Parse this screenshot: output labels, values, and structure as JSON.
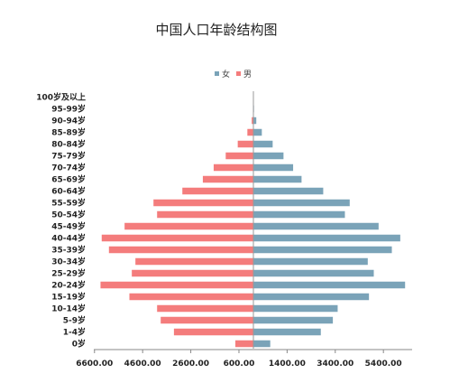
{
  "chart_data": {
    "type": "bar",
    "orientation": "horizontal-diverging",
    "title": "中国人口年龄结构图",
    "categories": [
      "0岁",
      "1-4岁",
      "5-9岁",
      "10-14岁",
      "15-19岁",
      "20-24岁",
      "25-29岁",
      "30-34岁",
      "35-39岁",
      "40-44岁",
      "45-49岁",
      "50-54岁",
      "55-59岁",
      "60-64岁",
      "65-69岁",
      "70-74岁",
      "75-79岁",
      "80-84岁",
      "85-89岁",
      "90-94岁",
      "95-99岁",
      "100岁及以上"
    ],
    "series": [
      {
        "name": "女",
        "color": "#7aa3b8",
        "values": [
          700,
          2800,
          3300,
          3500,
          4800,
          6300,
          5000,
          4750,
          5750,
          6100,
          5200,
          3800,
          4000,
          2900,
          2000,
          1650,
          1250,
          800,
          350,
          120,
          25,
          5
        ]
      },
      {
        "name": "男",
        "color": "#f47c7c",
        "values": [
          750,
          3300,
          3850,
          4000,
          5150,
          6350,
          5050,
          4900,
          6000,
          6300,
          5350,
          4000,
          4150,
          2950,
          2100,
          1650,
          1150,
          650,
          250,
          70,
          10,
          2
        ]
      }
    ],
    "x_ticks": [
      "6600.00",
      "4600.00",
      "2600.00",
      "600.00",
      "1400.00",
      "3400.00",
      "5400.00"
    ],
    "xlim": [
      -6600,
      6600
    ],
    "legend_position": "top-center",
    "grid": false
  }
}
